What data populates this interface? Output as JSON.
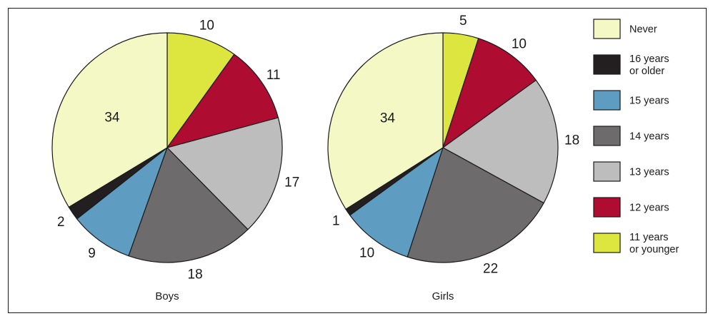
{
  "chart_data": [
    {
      "type": "pie",
      "title": "Boys",
      "slices": [
        {
          "label": "11 years or younger",
          "value": 10,
          "color": "#dde63f"
        },
        {
          "label": "12 years",
          "value": 11,
          "color": "#ae0c31"
        },
        {
          "label": "13 years",
          "value": 17,
          "color": "#bdbdbd"
        },
        {
          "label": "14 years",
          "value": 18,
          "color": "#6e6b6c"
        },
        {
          "label": "15 years",
          "value": 9,
          "color": "#5f9cc1"
        },
        {
          "label": "16 years or older",
          "value": 2,
          "color": "#231f20"
        },
        {
          "label": "Never",
          "value": 34,
          "color": "#f4f8c4"
        }
      ]
    },
    {
      "type": "pie",
      "title": "Girls",
      "slices": [
        {
          "label": "11 years or younger",
          "value": 5,
          "color": "#dde63f"
        },
        {
          "label": "12 years",
          "value": 10,
          "color": "#ae0c31"
        },
        {
          "label": "13 years",
          "value": 18,
          "color": "#bdbdbd"
        },
        {
          "label": "14 years",
          "value": 22,
          "color": "#6e6b6c"
        },
        {
          "label": "15 years",
          "value": 10,
          "color": "#5f9cc1"
        },
        {
          "label": "16 years or older",
          "value": 1,
          "color": "#231f20"
        },
        {
          "label": "Never",
          "value": 34,
          "color": "#f4f8c4"
        }
      ]
    }
  ],
  "legend": [
    {
      "lines": [
        "Never"
      ],
      "color": "#f4f8c4"
    },
    {
      "lines": [
        "16 years",
        "or older"
      ],
      "color": "#231f20"
    },
    {
      "lines": [
        "15 years"
      ],
      "color": "#5f9cc1"
    },
    {
      "lines": [
        "14 years"
      ],
      "color": "#6e6b6c"
    },
    {
      "lines": [
        "13 years"
      ],
      "color": "#bdbdbd"
    },
    {
      "lines": [
        "12 years"
      ],
      "color": "#ae0c31"
    },
    {
      "lines": [
        "11 years",
        "or younger"
      ],
      "color": "#dde63f"
    }
  ]
}
